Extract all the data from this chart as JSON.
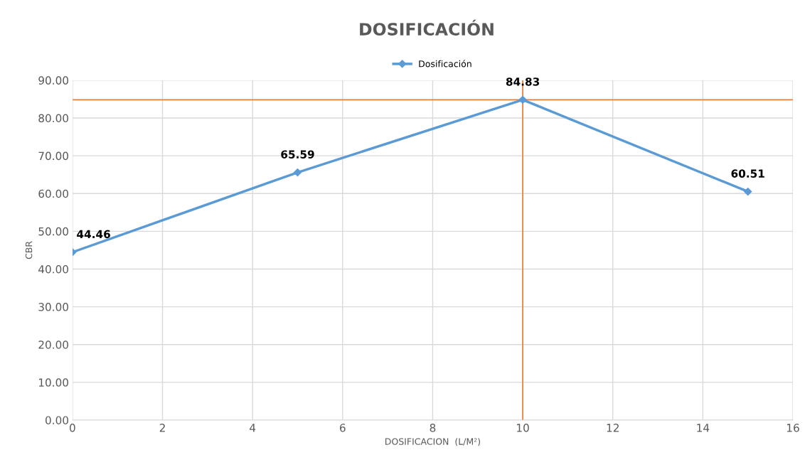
{
  "chart_data": {
    "type": "line",
    "title": "DOSIFICACIÓN",
    "xlabel": "DOSIFICACION  (L/M²)",
    "ylabel": "CBR",
    "x": [
      0,
      5,
      10,
      15
    ],
    "series": [
      {
        "name": "Dosificación",
        "color": "#5b9bd5",
        "values": [
          44.46,
          65.59,
          84.83,
          60.51
        ]
      }
    ],
    "xlim": [
      0,
      16
    ],
    "xticks": [
      0,
      2,
      4,
      6,
      8,
      10,
      12,
      14,
      16
    ],
    "ylim": [
      0,
      90
    ],
    "yticks": [
      {
        "value": 0,
        "label": "0.00"
      },
      {
        "value": 10,
        "label": "10.00"
      },
      {
        "value": 20,
        "label": "20.00"
      },
      {
        "value": 30,
        "label": "30.00"
      },
      {
        "value": 40,
        "label": "40.00"
      },
      {
        "value": 50,
        "label": "50.00"
      },
      {
        "value": 60,
        "label": "60.00"
      },
      {
        "value": 70,
        "label": "70.00"
      },
      {
        "value": 80,
        "label": "80.00"
      },
      {
        "value": 90,
        "label": "90.00"
      }
    ],
    "ref_lines": [
      {
        "axis": "y",
        "value": 84.83,
        "color": "#ed7d31"
      },
      {
        "axis": "x",
        "value": 10,
        "color": "#ed7d31"
      }
    ],
    "grid": true,
    "legend": "top",
    "marker": "diamond",
    "line_style": "solid",
    "data_labels": true
  }
}
